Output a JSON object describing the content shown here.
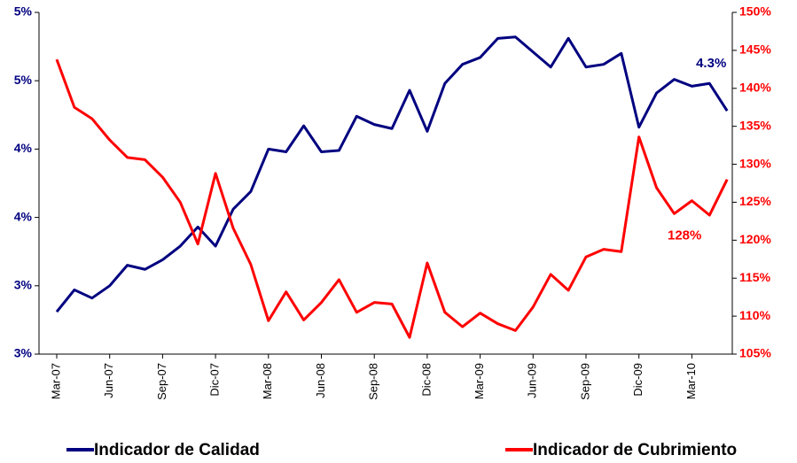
{
  "chart_data": {
    "type": "line",
    "categories": [
      "Mar-07",
      null,
      null,
      "Jun-07",
      null,
      null,
      "Sep-07",
      null,
      null,
      "Dic-07",
      null,
      null,
      "Mar-08",
      null,
      null,
      "Jun-08",
      null,
      null,
      "Sep-08",
      null,
      null,
      "Dic-08",
      null,
      null,
      "Mar-09",
      null,
      null,
      "Jun-09",
      null,
      null,
      "Sep-09",
      null,
      null,
      "Dic-09",
      null,
      null,
      "Mar-10",
      null,
      null
    ],
    "series": [
      {
        "name": "Indicador de Calidad",
        "color": "#000080",
        "axis": "y",
        "values": [
          2.81,
          2.97,
          2.91,
          3.0,
          3.15,
          3.12,
          3.19,
          3.29,
          3.43,
          3.29,
          3.56,
          3.69,
          4.0,
          3.98,
          4.17,
          3.98,
          3.99,
          4.24,
          4.18,
          4.15,
          4.43,
          4.13,
          4.48,
          4.62,
          4.67,
          4.81,
          4.82,
          4.71,
          4.6,
          4.81,
          4.6,
          4.62,
          4.7,
          4.16,
          4.41,
          4.51,
          4.46,
          4.48,
          4.28
        ]
      },
      {
        "name": "Indicador de Cubrimiento",
        "color": "#ff0000",
        "axis": "y2",
        "values": [
          143.8,
          137.5,
          136.0,
          133.2,
          130.9,
          130.6,
          128.3,
          125.0,
          119.5,
          128.8,
          121.6,
          116.8,
          109.4,
          113.2,
          109.5,
          111.8,
          114.8,
          110.5,
          111.8,
          111.6,
          107.2,
          117.0,
          110.5,
          108.6,
          110.4,
          109.0,
          108.1,
          111.2,
          115.5,
          113.4,
          117.8,
          118.8,
          118.5,
          133.6,
          126.9,
          123.5,
          125.2,
          123.3,
          128.0
        ]
      }
    ],
    "ylim": [
      2.5,
      5.0
    ],
    "yticks": [
      {
        "value": 2.5,
        "label": "3%"
      },
      {
        "value": 3.0,
        "label": "3%"
      },
      {
        "value": 3.5,
        "label": "4%"
      },
      {
        "value": 4.0,
        "label": "4%"
      },
      {
        "value": 4.5,
        "label": "5%"
      },
      {
        "value": 5.0,
        "label": "5%"
      }
    ],
    "y2lim": [
      105,
      150
    ],
    "y2ticks": [
      {
        "value": 105,
        "label": "105%"
      },
      {
        "value": 110,
        "label": "110%"
      },
      {
        "value": 115,
        "label": "115%"
      },
      {
        "value": 120,
        "label": "120%"
      },
      {
        "value": 125,
        "label": "125%"
      },
      {
        "value": 130,
        "label": "130%"
      },
      {
        "value": 135,
        "label": "135%"
      },
      {
        "value": 140,
        "label": "140%"
      },
      {
        "value": 145,
        "label": "145%"
      },
      {
        "value": 150,
        "label": "150%"
      }
    ],
    "annotations": [
      {
        "text": "4.3%",
        "series": 0,
        "index": 38
      },
      {
        "text": "128%",
        "series": 1,
        "index": 38
      }
    ],
    "legend": "bottom"
  }
}
